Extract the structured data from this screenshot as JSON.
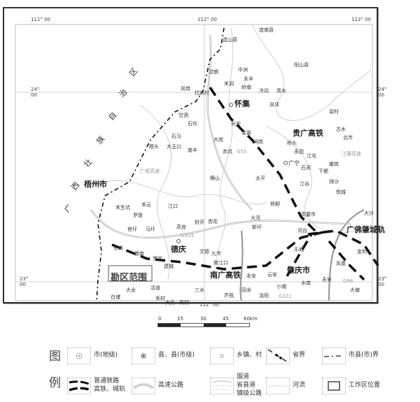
{
  "map": {
    "coords": {
      "lon_111": "111° 00",
      "lon_112_top": "112° 00",
      "lon_113": "113° 00",
      "lat_24_left": "24° 00",
      "lat_24_right": "24° 00",
      "lat_23_left": "23° 00",
      "lat_23_right": "23° 00",
      "lon_112_bottom": "112° 00"
    },
    "region_label": [
      "广",
      "西",
      "壮",
      "族",
      "自",
      "治",
      "区"
    ],
    "cities_major": {
      "wuzhou": "梧州市",
      "huaiji": "怀集",
      "guangning": "广宁",
      "deqing": "德庆",
      "zhaoqing": "肇庆市"
    },
    "railways": {
      "guiguang": "贵广高铁",
      "nanguang": "南广高铁",
      "guangfozhao": "广佛肇城轨"
    },
    "survey_area": "勘区范围",
    "places": [
      "连南县",
      "连山县",
      "阳山县",
      "中洲",
      "永丰",
      "禾洞",
      "岭南",
      "冷坑",
      "青水",
      "汶朗",
      "凤岗",
      "拉凯村",
      "凤坪",
      "梁村",
      "甘洒",
      "石坎",
      "长安",
      "金装",
      "大岗",
      "闸岗",
      "桥头",
      "古水",
      "北市",
      "石马",
      "梧头",
      "大玉口",
      "南丰",
      "赤坑",
      "永固",
      "江屯",
      "横山",
      "太平",
      "石涧",
      "螺岗",
      "江谷",
      "排沙",
      "下都",
      "悦城",
      "禾云",
      "禾生坑",
      "罗盘",
      "江口",
      "封开",
      "杏花",
      "高良",
      "马圩",
      "官圩",
      "长岗",
      "都南",
      "罗定",
      "建城",
      "文德",
      "南江口",
      "九市",
      "云安",
      "永安",
      "大湾",
      "杨柳",
      "新圩",
      "河台",
      "乐城",
      "永安",
      "凤凰",
      "水南",
      "小湘",
      "金利",
      "大沙",
      "高要市",
      "白诸",
      "活道",
      "三水",
      "芦苞",
      "禾村",
      "大全",
      "大方",
      "高村",
      "回龙",
      "洛阳",
      "大塘"
    ],
    "road_labels": [
      "G55",
      "G324",
      "G321",
      "G94",
      "广梧高速",
      "江肇高速"
    ]
  },
  "scale": {
    "ticks": [
      "0",
      "15",
      "30",
      "45",
      "60km"
    ]
  },
  "legend": {
    "title_1": "图",
    "title_2": "例",
    "items": [
      {
        "icon": "prefecture-city-icon",
        "label": "市(地级)"
      },
      {
        "icon": "county-icon",
        "label": "县、县(市级)"
      },
      {
        "icon": "town-village-icon",
        "label": "乡镇、村"
      },
      {
        "icon": "provincial-boundary-icon",
        "label": "省界"
      },
      {
        "icon": "city-county-boundary-icon",
        "label": "市县(市)界"
      },
      {
        "icon": "railway-icon",
        "label": "普通铁路\n高铁、城轨"
      },
      {
        "icon": "expressway-icon",
        "label": "高速公路"
      },
      {
        "icon": "road-icon",
        "label": "国道\n省县道\n镇级公路"
      },
      {
        "icon": "river-icon",
        "label": "河流"
      },
      {
        "icon": "work-area-icon",
        "label": "工作区位置"
      }
    ]
  }
}
